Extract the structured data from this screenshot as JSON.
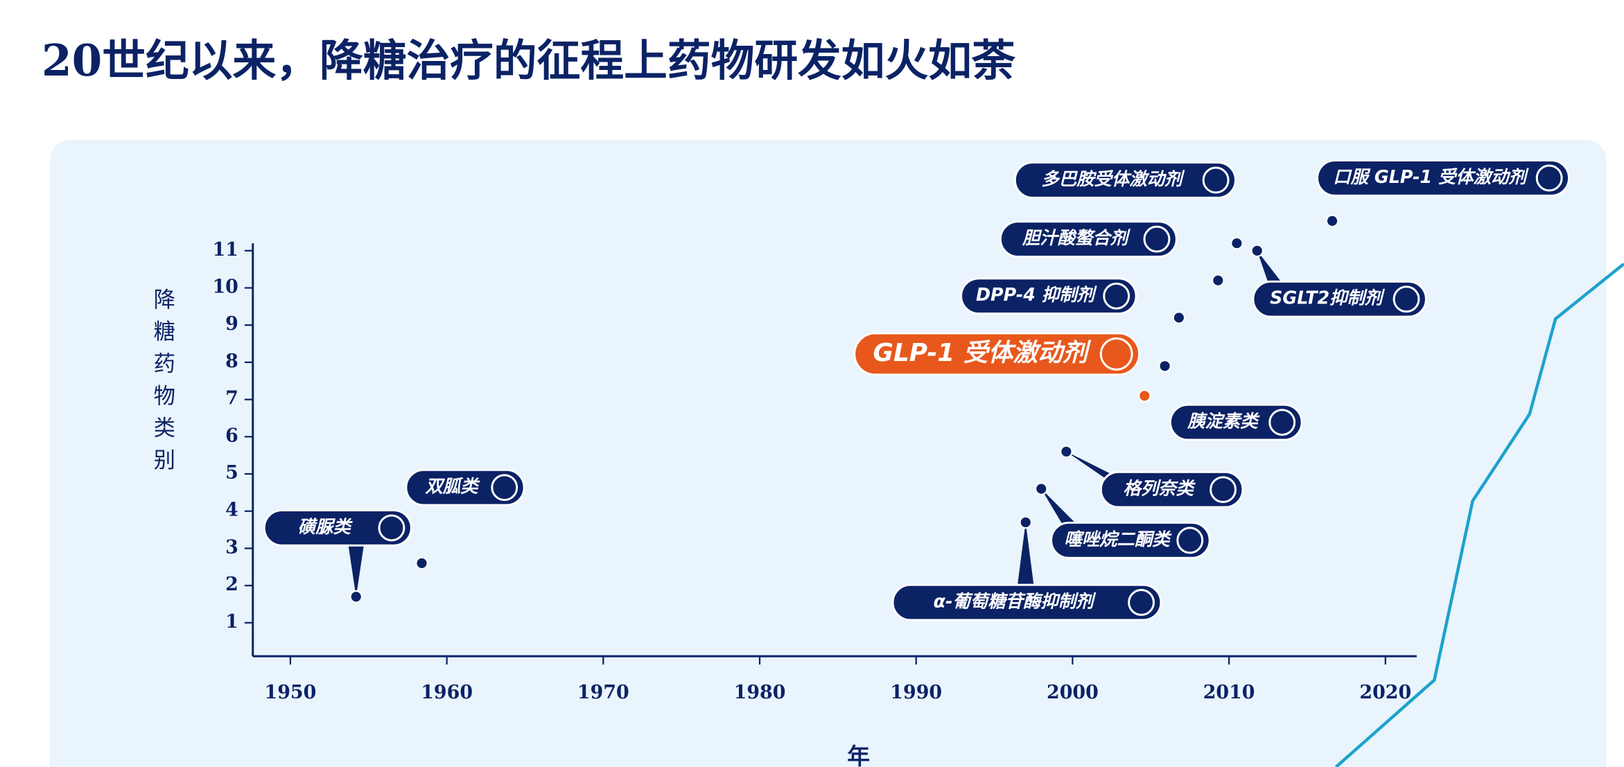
{
  "chart_data": {
    "type": "scatter",
    "title": "20世纪以来，降糖治疗的征程上药物研发如火如荼",
    "xlabel": "年",
    "ylabel": "降糖药物类别",
    "x": [
      1954.2,
      1958.4,
      1997,
      1998,
      1999.6,
      2004.6,
      2005.9,
      2006.8,
      2009.3,
      2010.5,
      2011.8,
      2016.6
    ],
    "y": [
      1.7,
      2.6,
      3.7,
      4.6,
      5.6,
      7.1,
      7.9,
      9.2,
      10.2,
      11.2,
      11.0,
      11.8
    ],
    "labels": [
      "磺脲类",
      "双胍类",
      "α-葡萄糖苷酶抑制剂",
      "噻唑烷二酮类",
      "格列奈类",
      "GLP-1 受体激动剂",
      "胰淀素类",
      "DPP-4 抑制剂",
      "胆汁酸螯合剂",
      "多巴胺受体激动剂",
      "SGLT2抑制剂",
      "口服 GLP-1 受体激动剂"
    ],
    "point_colors": [
      "#0b2265",
      "#0b2265",
      "#0b2265",
      "#0b2265",
      "#0b2265",
      "#e8581c",
      "#0b2265",
      "#0b2265",
      "#0b2265",
      "#0b2265",
      "#0b2265",
      "#0b2265"
    ],
    "xlim": [
      1947.6,
      2022
    ],
    "ylim": [
      0.1,
      11.2
    ],
    "xticks": [
      1950,
      1960,
      1970,
      1980,
      1990,
      2000,
      2010,
      2020
    ],
    "yticks": [
      1,
      2,
      3,
      4,
      5,
      6,
      7,
      8,
      9,
      10,
      11
    ]
  }
}
